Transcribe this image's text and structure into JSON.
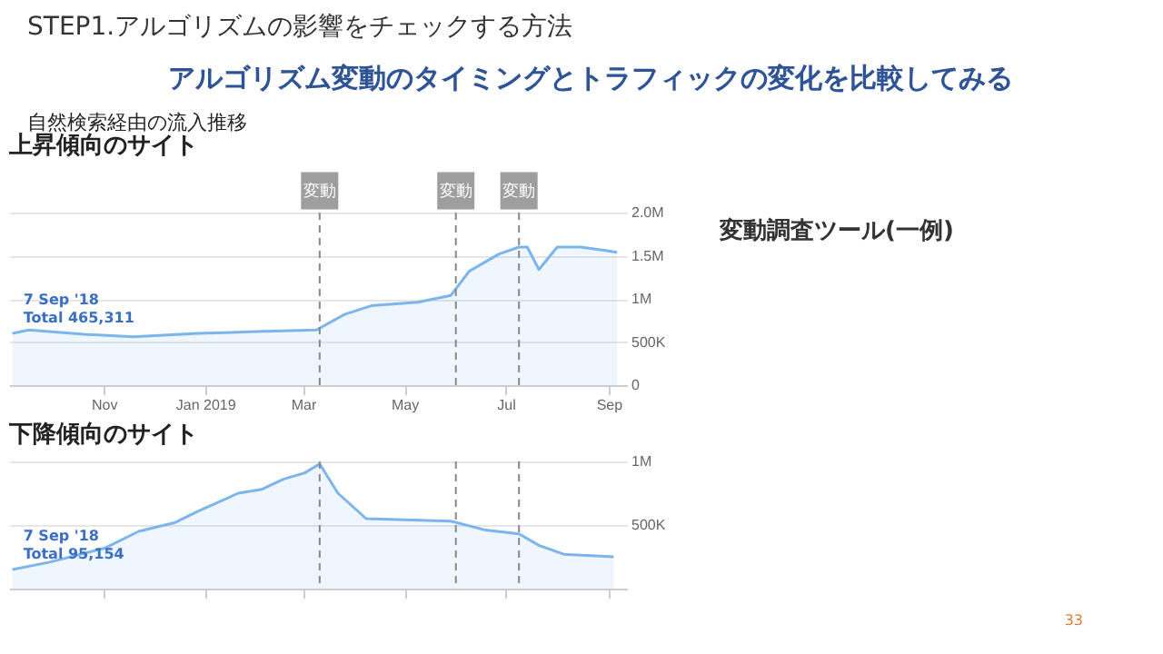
{
  "chart_data": [
    {
      "type": "area",
      "title": "上昇傾向のサイト",
      "annotations": [
        "STEP1.アルゴリズムの影響をチェックする方法",
        "アルゴリズム変動のタイミングとトラフィックの変化を比較してみる",
        "自然検索経由の流入推移",
        "変動調査ツール(一例)",
        "33",
        {
          "text": "7 Sep '18\nTotal 465,311",
          "x": "2018-09-07",
          "y": 600000
        }
      ],
      "x": [
        "2018-09-07",
        "2018-09-17",
        "2018-10-20",
        "2018-11-19",
        "2018-12-28",
        "2019-02-01",
        "2019-03-09",
        "2019-03-26",
        "2019-04-11",
        "2019-05-09",
        "2019-05-29",
        "2019-06-09",
        "2019-06-27",
        "2019-07-09",
        "2019-07-14",
        "2019-07-21",
        "2019-08-01",
        "2019-08-15",
        "2019-08-30",
        "2019-09-06"
      ],
      "values": [
        600000,
        640000,
        590000,
        560000,
        600000,
        620000,
        640000,
        820000,
        920000,
        960000,
        1040000,
        1320000,
        1520000,
        1600000,
        1600000,
        1340000,
        1600000,
        1600000,
        1560000,
        1540000
      ],
      "color": "#7cb5ec",
      "marker": "none",
      "grid": "y",
      "xlim": [
        "2018-09-05",
        "2019-09-12"
      ],
      "xticks": [
        {
          "value": "2018-11-01",
          "label": "Nov"
        },
        {
          "value": "2019-01-01",
          "label": "Jan 2019"
        },
        {
          "value": "2019-03-01",
          "label": "Mar"
        },
        {
          "value": "2019-05-01",
          "label": "May"
        },
        {
          "value": "2019-07-01",
          "label": "Jul"
        },
        {
          "value": "2019-09-01",
          "label": "Sep"
        }
      ],
      "ylim": [
        0,
        2000000
      ],
      "yticks": [
        0,
        {
          "value": 500000,
          "label": "500K"
        },
        {
          "value": 1000000,
          "label": "1M"
        },
        {
          "value": 1500000,
          "label": "1.5M"
        },
        {
          "value": 2000000,
          "label": "2.0M"
        }
      ],
      "ref_lines": [
        {
          "axis": "x",
          "value": "2019-03-11",
          "label": "変動"
        },
        {
          "axis": "x",
          "value": "2019-06-01",
          "label": "変動"
        },
        {
          "axis": "x",
          "value": "2019-07-09",
          "label": "変動"
        }
      ]
    },
    {
      "type": "area",
      "title": "下降傾向のサイト",
      "annotations": [
        {
          "text": "7 Sep '18\nTotal 95,154",
          "x": "2018-09-07",
          "y": 150000
        }
      ],
      "x": [
        "2018-09-07",
        "2018-09-30",
        "2018-11-02",
        "2018-11-22",
        "2018-12-14",
        "2018-12-28",
        "2019-01-21",
        "2019-02-04",
        "2019-02-17",
        "2019-03-02",
        "2019-03-11",
        "2019-03-22",
        "2019-04-08",
        "2019-05-29",
        "2019-06-19",
        "2019-07-09",
        "2019-07-21",
        "2019-08-05",
        "2019-09-04"
      ],
      "values": [
        150000,
        210000,
        320000,
        450000,
        520000,
        610000,
        750000,
        780000,
        860000,
        910000,
        980000,
        750000,
        550000,
        530000,
        460000,
        430000,
        340000,
        270000,
        250000
      ],
      "color": "#7cb5ec",
      "marker": "none",
      "grid": "y",
      "tick_labels": "y",
      "xlim": [
        "2018-09-05",
        "2019-09-12"
      ],
      "xticks": [
        {
          "value": "2018-11-01",
          "label": null
        },
        {
          "value": "2019-01-01",
          "label": null
        },
        {
          "value": "2019-03-01",
          "label": null
        },
        {
          "value": "2019-05-01",
          "label": null
        },
        {
          "value": "2019-07-01",
          "label": null
        },
        {
          "value": "2019-09-01",
          "label": null
        }
      ],
      "ylim": [
        0,
        1000000
      ],
      "yticks": [
        {
          "value": 500000,
          "label": "500K"
        },
        {
          "value": 1000000,
          "label": "1M"
        }
      ],
      "ref_lines": [
        {
          "axis": "x",
          "value": "2019-03-11"
        },
        {
          "axis": "x",
          "value": "2019-06-01"
        },
        {
          "axis": "x",
          "value": "2019-07-09"
        }
      ]
    }
  ]
}
